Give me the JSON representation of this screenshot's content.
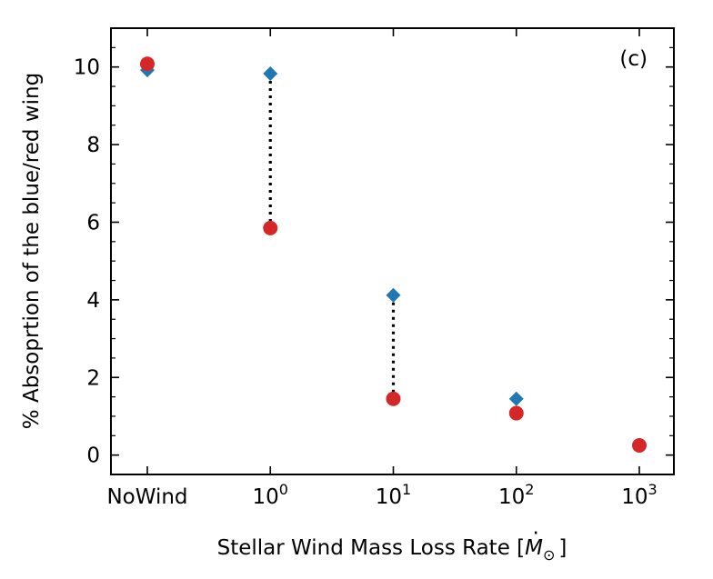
{
  "chart_data": {
    "type": "scatter",
    "panel_label": "(c)",
    "xlabel": "Stellar Wind Mass Loss Rate [",
    "xlabel_symbol": "M",
    "xlabel_sub": "⊙",
    "xlabel_close": "]",
    "ylabel": "% Absoprtion of the blue/red wing",
    "ylim": [
      -0.5,
      11
    ],
    "yticks": [
      0,
      2,
      4,
      6,
      8,
      10
    ],
    "ytick_labels": [
      "0",
      "2",
      "4",
      "6",
      "8",
      "10"
    ],
    "x_categories": [
      {
        "label": "NoWind",
        "base": "",
        "exp": ""
      },
      {
        "label": "",
        "base": "10",
        "exp": "0"
      },
      {
        "label": "",
        "base": "10",
        "exp": "1"
      },
      {
        "label": "",
        "base": "10",
        "exp": "2"
      },
      {
        "label": "",
        "base": "10",
        "exp": "3"
      }
    ],
    "series": [
      {
        "marker": "diamond",
        "color": "#1f77b4",
        "values": [
          9.92,
          9.83,
          4.12,
          1.45,
          0.25
        ]
      },
      {
        "marker": "circle",
        "color": "#d62728",
        "values": [
          10.08,
          5.85,
          1.45,
          1.08,
          0.25
        ]
      }
    ],
    "connectors": [
      {
        "index": 1,
        "from": 9.83,
        "to": 5.85
      },
      {
        "index": 2,
        "from": 4.12,
        "to": 1.45
      }
    ],
    "grid": false
  }
}
